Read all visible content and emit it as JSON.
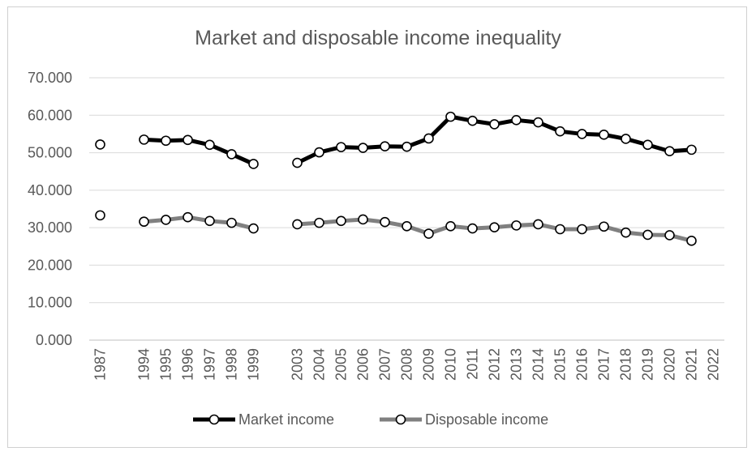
{
  "chart_data": {
    "type": "line",
    "title": "Market and disposable income inequality",
    "xlabel": "",
    "ylabel": "",
    "categories": [
      "1987",
      "",
      "1994",
      "1995",
      "1996",
      "1997",
      "1998",
      "1999",
      "",
      "2003",
      "2004",
      "2005",
      "2006",
      "2007",
      "2008",
      "2009",
      "2010",
      "2011",
      "2012",
      "2013",
      "2014",
      "2015",
      "2016",
      "2017",
      "2018",
      "2019",
      "2020",
      "2021",
      "2022"
    ],
    "ylim": [
      0,
      70
    ],
    "yticks": [
      "0.000",
      "10.000",
      "20.000",
      "30.000",
      "40.000",
      "50.000",
      "60.000",
      "70.000"
    ],
    "grid": true,
    "legend_position": "bottom",
    "series": [
      {
        "name": "Market income",
        "color": "#000000",
        "values": [
          52.2,
          null,
          53.5,
          53.2,
          53.4,
          52.1,
          49.6,
          47.0,
          null,
          47.3,
          50.1,
          51.5,
          51.3,
          51.7,
          51.6,
          53.8,
          59.6,
          58.5,
          57.6,
          58.7,
          58.1,
          55.7,
          55.0,
          54.8,
          53.7,
          52.1,
          50.4,
          50.8,
          null
        ]
      },
      {
        "name": "Disposable income",
        "color": "#808080",
        "values": [
          33.3,
          null,
          31.6,
          32.1,
          32.8,
          31.8,
          31.3,
          29.8,
          null,
          30.9,
          31.3,
          31.8,
          32.2,
          31.5,
          30.4,
          28.4,
          30.4,
          29.8,
          30.1,
          30.6,
          30.9,
          29.6,
          29.6,
          30.3,
          28.7,
          28.1,
          28.0,
          26.5,
          null
        ]
      }
    ]
  }
}
